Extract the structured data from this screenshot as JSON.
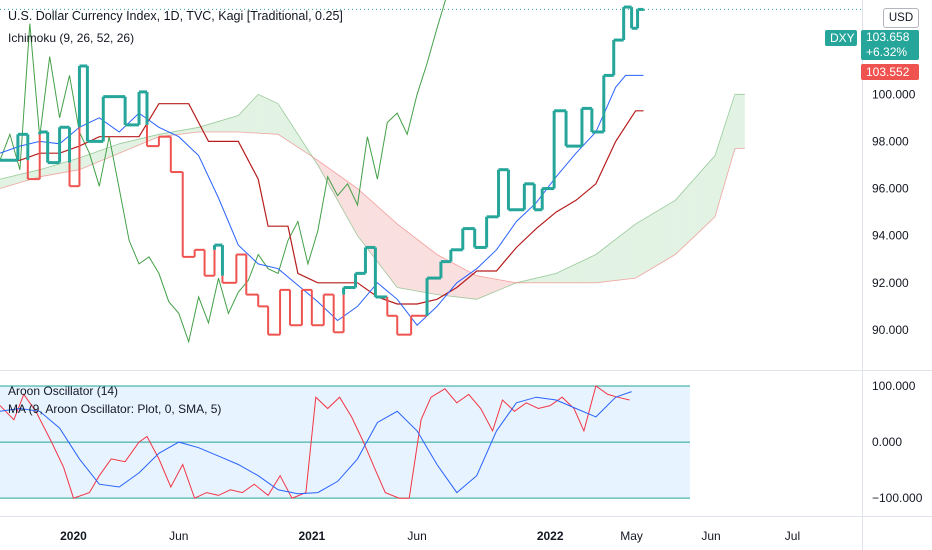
{
  "header": {
    "title": "U.S. Dollar Currency Index, 1D, TVC, Kagi [Traditional, 0.25]",
    "indicator_1": "Ichimoku (9, 26, 52, 26)",
    "indicator_2": "Aroon Oscillator (14)",
    "indicator_3": "MA (9, Aroon Oscillator: Plot, 0, SMA, 5)",
    "currency_button": "USD"
  },
  "price_tags": {
    "symbol": "DXY",
    "last": "103.658",
    "change": "+6.32%",
    "previous": "103.552"
  },
  "colors": {
    "up": "#26a69a",
    "down": "#ef5350",
    "conversion": "#2962ff",
    "base": "#b71c1c",
    "lagging": "#43a047",
    "cloud_up": "#a5d6a7",
    "cloud_down": "#ef9a9a",
    "aroon": "#f23645",
    "aroon_ma": "#2962ff",
    "band": "#bbdefb"
  },
  "chart_data": [
    {
      "type": "line",
      "subtype": "kagi",
      "y_ticks": [
        "100.000",
        "98.000",
        "96.000",
        "94.000",
        "92.000",
        "90.000"
      ],
      "ylim": [
        88.3,
        104.0
      ],
      "x_ticks": [
        {
          "label": "2020",
          "bold": true,
          "t": 3.7
        },
        {
          "label": "Jun",
          "bold": false,
          "t": 9.0
        },
        {
          "label": "2021",
          "bold": true,
          "t": 15.7
        },
        {
          "label": "Jun",
          "bold": false,
          "t": 21.0
        },
        {
          "label": "2022",
          "bold": true,
          "t": 27.7
        },
        {
          "label": "May",
          "bold": false,
          "t": 31.8
        },
        {
          "label": "Jun",
          "bold": false,
          "t": 35.8
        },
        {
          "label": "Jul",
          "bold": false,
          "t": 39.9
        }
      ],
      "xlim": [
        0,
        43.4
      ],
      "series": [
        {
          "name": "Kagi",
          "x": [
            0.0,
            0.9,
            1.4,
            2.0,
            2.4,
            3.0,
            3.5,
            4.0,
            4.4,
            5.2,
            6.3,
            7.0,
            7.4,
            8.0,
            8.6,
            9.2,
            9.8,
            10.3,
            10.8,
            11.2,
            11.9,
            12.4,
            13.0,
            13.5,
            14.1,
            14.6,
            15.2,
            15.7,
            16.3,
            16.8,
            17.3,
            17.9,
            18.4,
            18.9,
            19.5,
            20.0,
            20.7,
            21.5,
            22.2,
            22.7,
            23.3,
            23.9,
            24.5,
            25.1,
            25.6,
            26.4,
            26.9,
            27.3,
            27.9,
            28.5,
            29.3,
            29.8,
            30.4,
            30.9,
            31.4,
            31.8,
            32.1,
            32.4
          ],
          "y": [
            97.2,
            98.3,
            96.4,
            98.4,
            97.1,
            98.6,
            96.1,
            101.2,
            98.0,
            99.9,
            98.7,
            100.1,
            97.8,
            98.2,
            96.7,
            93.1,
            93.4,
            92.3,
            93.6,
            92.0,
            93.2,
            91.5,
            91.0,
            89.8,
            91.7,
            90.2,
            91.7,
            90.2,
            91.5,
            89.9,
            91.8,
            92.4,
            93.5,
            91.4,
            90.6,
            89.8,
            90.6,
            92.2,
            92.9,
            93.4,
            94.3,
            93.5,
            94.8,
            96.8,
            95.1,
            96.2,
            95.1,
            96.0,
            99.3,
            97.8,
            99.4,
            98.4,
            100.8,
            102.3,
            103.7,
            102.8,
            103.6,
            103.55
          ]
        },
        {
          "name": "Conversion Line",
          "x": [
            0,
            1,
            2,
            3,
            4,
            5,
            6,
            7,
            8,
            9,
            10,
            11,
            12,
            13,
            14,
            15,
            16,
            17,
            18,
            19,
            20,
            21,
            22,
            23,
            24,
            25,
            26,
            27,
            28,
            29,
            30,
            31,
            31.5,
            32.4
          ],
          "y": [
            97.5,
            97.8,
            98.0,
            97.9,
            98.6,
            99.0,
            98.4,
            99.2,
            98.6,
            98.2,
            97.4,
            95.6,
            93.6,
            92.8,
            92.6,
            91.9,
            91.2,
            90.4,
            91.0,
            92.0,
            91.3,
            90.2,
            91.0,
            92.0,
            92.6,
            93.4,
            94.6,
            95.4,
            96.5,
            97.5,
            98.4,
            100.3,
            100.8,
            100.8
          ]
        },
        {
          "name": "Base Line",
          "x": [
            0,
            1,
            2,
            3,
            4,
            5,
            6,
            7,
            8,
            9,
            9.5,
            10.5,
            11,
            12,
            13,
            13.5,
            14.5,
            15,
            16,
            17,
            18,
            19,
            20,
            21,
            22,
            23,
            24,
            25,
            26,
            27,
            28,
            29,
            30,
            31,
            32,
            32.4
          ],
          "y": [
            97.2,
            97.2,
            97.5,
            97.5,
            97.8,
            98.2,
            98.2,
            98.2,
            99.6,
            99.6,
            99.6,
            98.0,
            98.0,
            98.0,
            96.4,
            94.4,
            94.4,
            92.4,
            92.0,
            92.0,
            92.0,
            91.4,
            91.1,
            91.1,
            91.3,
            91.8,
            92.5,
            92.5,
            93.5,
            94.3,
            95.0,
            95.5,
            96.2,
            98.0,
            99.3,
            99.3
          ]
        },
        {
          "name": "Lagging Span",
          "x": [
            0,
            0.5,
            1,
            1.5,
            2,
            2.5,
            3,
            3.5,
            4,
            4.5,
            5,
            5.5,
            6,
            6.5,
            7,
            7.5,
            8,
            8.5,
            9,
            9.5,
            10,
            10.5,
            11,
            11.5,
            12,
            12.5,
            13,
            13.5,
            14,
            14.5,
            15,
            15.5,
            16,
            16.5,
            17,
            17.5,
            18,
            18.5,
            19,
            19.5,
            20,
            20.5,
            21,
            21.5,
            22,
            22.5,
            23,
            23.5,
            24,
            24.5,
            25,
            25.5,
            26,
            26.5,
            27,
            27.5,
            28
          ],
          "y": [
            97.2,
            98.3,
            96.8,
            103.0,
            98.2,
            101.6,
            99.0,
            100.8,
            98.4,
            97.5,
            96.1,
            98.2,
            96.0,
            93.8,
            92.8,
            93.1,
            92.4,
            91.2,
            90.7,
            89.5,
            91.4,
            90.3,
            92.2,
            90.7,
            91.6,
            92.1,
            93.2,
            92.6,
            92.4,
            93.8,
            94.6,
            92.8,
            94.2,
            96.5,
            95.7,
            96.2,
            95.3,
            98.2,
            96.4,
            98.8,
            99.2,
            98.3,
            100.0,
            101.3,
            102.8,
            104.2,
            104.4,
            104.6,
            104.6,
            104.6,
            104.6,
            104.6,
            104.6,
            104.6,
            104.6,
            104.6,
            104.6
          ]
        },
        {
          "name": "Leading Span A",
          "x": [
            0,
            2,
            4,
            6,
            8,
            10,
            12,
            13,
            14,
            16,
            18,
            20,
            22,
            24,
            26,
            28,
            30,
            32,
            34,
            36,
            37,
            37.5
          ],
          "y": [
            96.4,
            96.8,
            97.3,
            97.9,
            98.3,
            98.6,
            99.1,
            100.0,
            99.6,
            97.0,
            94.0,
            91.8,
            91.5,
            91.3,
            92.0,
            92.4,
            93.2,
            94.5,
            95.5,
            97.4,
            100.0,
            100.0
          ]
        },
        {
          "name": "Leading Span B",
          "x": [
            0,
            2,
            4,
            6,
            8,
            10,
            12,
            14,
            16,
            18,
            20,
            22,
            24,
            26,
            28,
            30,
            32,
            34,
            35,
            36,
            37,
            37.5
          ],
          "y": [
            96.0,
            96.5,
            96.8,
            97.5,
            98.2,
            98.4,
            98.4,
            98.3,
            97.2,
            96.0,
            94.5,
            93.2,
            92.3,
            92.0,
            92.0,
            92.0,
            92.2,
            93.2,
            94.0,
            94.8,
            97.7,
            97.7
          ]
        }
      ]
    },
    {
      "type": "line",
      "y_ticks": [
        "100.000",
        "0.000",
        "−100.000"
      ],
      "ylim": [
        -130,
        125
      ],
      "band": [
        -100,
        100
      ],
      "zero_line": 0,
      "series": [
        {
          "name": "Aroon Oscillator",
          "x": [
            0,
            0.7,
            1.2,
            1.8,
            2.6,
            3.2,
            3.7,
            4.5,
            5.0,
            5.6,
            6.3,
            7.0,
            7.4,
            8.0,
            8.6,
            9.2,
            9.8,
            10.4,
            11.0,
            11.6,
            12.2,
            12.8,
            13.5,
            14.1,
            14.7,
            15.4,
            15.9,
            16.5,
            17.1,
            17.7,
            18.3,
            18.9,
            19.4,
            20.1,
            20.6,
            21.2,
            21.7,
            22.4,
            23.0,
            23.6,
            24.2,
            24.8,
            25.3,
            25.9,
            26.5,
            27.1,
            27.7,
            28.3,
            28.9,
            29.4,
            30.0,
            30.6,
            31.1,
            31.7
          ],
          "y": [
            65,
            40,
            85,
            55,
            0,
            -45,
            -100,
            -90,
            -60,
            -30,
            -35,
            0,
            10,
            -30,
            -80,
            -40,
            -100,
            -90,
            -95,
            -85,
            -90,
            -75,
            -95,
            -60,
            -100,
            -90,
            80,
            60,
            80,
            45,
            0,
            -50,
            -90,
            -100,
            -100,
            40,
            80,
            95,
            70,
            85,
            60,
            20,
            75,
            55,
            70,
            60,
            65,
            80,
            60,
            20,
            100,
            85,
            80,
            75
          ]
        },
        {
          "name": "MA",
          "x": [
            0,
            1,
            2,
            3,
            4,
            5,
            6,
            7,
            8,
            9,
            10,
            11,
            12,
            13,
            14,
            15,
            16,
            17,
            18,
            19,
            20,
            21,
            22,
            23,
            24,
            25,
            26,
            27,
            28,
            29,
            30,
            31,
            31.8
          ],
          "y": [
            55,
            60,
            55,
            25,
            -30,
            -75,
            -80,
            -55,
            -20,
            0,
            -10,
            -25,
            -40,
            -60,
            -85,
            -92,
            -90,
            -70,
            -30,
            35,
            55,
            20,
            -40,
            -90,
            -60,
            20,
            70,
            80,
            75,
            60,
            45,
            80,
            90
          ]
        }
      ]
    }
  ]
}
